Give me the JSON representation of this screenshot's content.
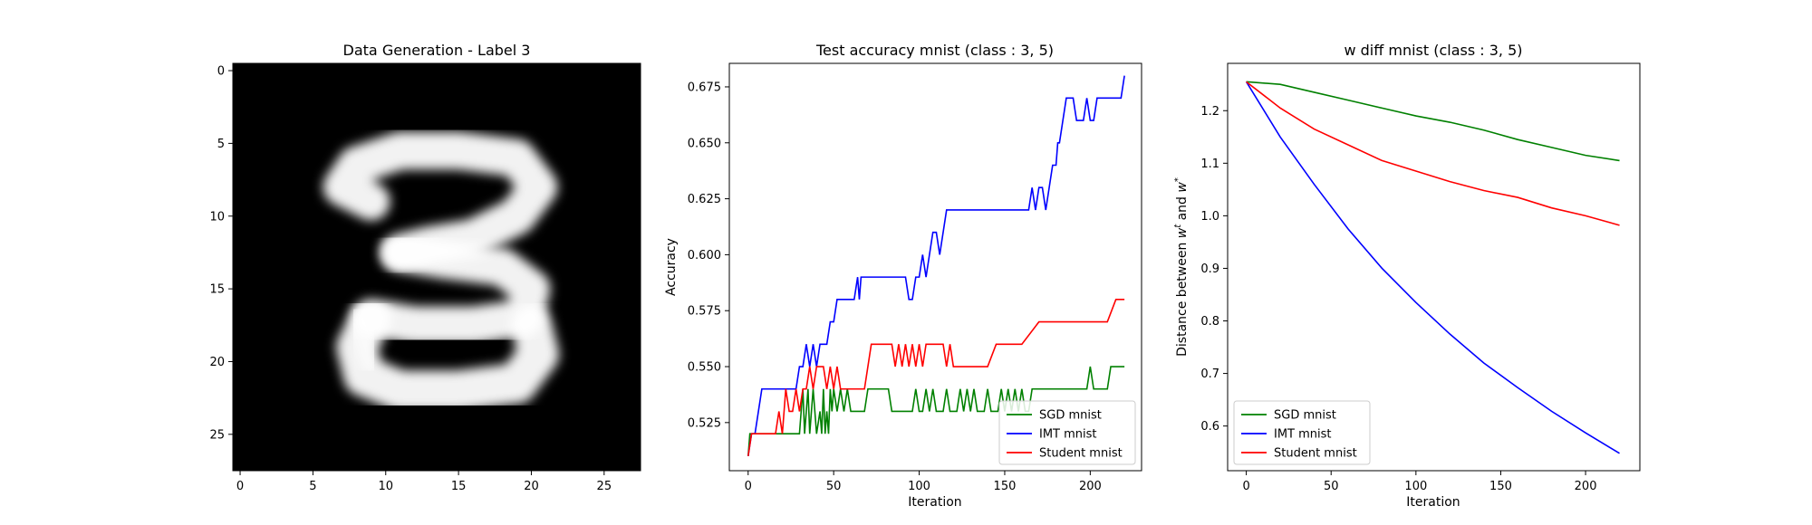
{
  "chart_data": [
    {
      "type": "heatmap",
      "title": "Data Generation - Label 3",
      "xlabel": "",
      "ylabel": "",
      "colormap": "gray",
      "shape": [
        28,
        28
      ],
      "xticks": [
        0,
        5,
        10,
        15,
        20,
        25
      ],
      "yticks": [
        0,
        5,
        10,
        15,
        20,
        25
      ],
      "grid": false
    },
    {
      "type": "line",
      "title": "Test accuracy mnist (class : 3, 5)",
      "xlabel": "Iteration",
      "ylabel": "Accuracy",
      "xlim": [
        -11,
        230
      ],
      "ylim": [
        0.5035,
        0.6855
      ],
      "xticks": [
        0,
        50,
        100,
        150,
        200
      ],
      "yticks": [
        0.525,
        0.55,
        0.575,
        0.6,
        0.625,
        0.65,
        0.675
      ],
      "grid": false,
      "legend": "lower-right",
      "series": [
        {
          "name": "SGD mnist",
          "color": "#008000",
          "x": [
            0,
            1,
            2,
            3,
            4,
            5,
            6,
            8,
            10,
            12,
            14,
            16,
            18,
            20,
            22,
            24,
            26,
            28,
            30,
            31,
            32,
            33,
            34,
            35,
            36,
            37,
            38,
            40,
            42,
            43,
            44,
            45,
            46,
            47,
            48,
            49,
            50,
            52,
            54,
            56,
            58,
            60,
            62,
            64,
            66,
            68,
            70,
            72,
            74,
            76,
            78,
            80,
            82,
            84,
            86,
            88,
            90,
            92,
            94,
            96,
            98,
            100,
            102,
            104,
            106,
            108,
            110,
            112,
            114,
            116,
            118,
            120,
            122,
            124,
            126,
            128,
            130,
            132,
            134,
            136,
            138,
            140,
            142,
            144,
            146,
            148,
            150,
            152,
            154,
            156,
            158,
            160,
            162,
            164,
            166,
            168,
            170,
            172,
            174,
            176,
            178,
            180,
            182,
            184,
            186,
            188,
            190,
            192,
            194,
            196,
            198,
            200,
            202,
            204,
            206,
            208,
            210,
            212,
            214,
            216,
            218,
            220
          ],
          "y": [
            0.51,
            0.52,
            0.52,
            0.52,
            0.52,
            0.52,
            0.52,
            0.52,
            0.52,
            0.52,
            0.52,
            0.52,
            0.52,
            0.52,
            0.52,
            0.52,
            0.52,
            0.52,
            0.52,
            0.53,
            0.54,
            0.52,
            0.53,
            0.54,
            0.52,
            0.53,
            0.54,
            0.52,
            0.53,
            0.52,
            0.54,
            0.52,
            0.53,
            0.52,
            0.54,
            0.53,
            0.54,
            0.53,
            0.54,
            0.53,
            0.54,
            0.53,
            0.53,
            0.53,
            0.53,
            0.53,
            0.54,
            0.54,
            0.54,
            0.54,
            0.54,
            0.54,
            0.54,
            0.53,
            0.53,
            0.53,
            0.53,
            0.53,
            0.53,
            0.53,
            0.54,
            0.53,
            0.53,
            0.54,
            0.53,
            0.54,
            0.53,
            0.53,
            0.53,
            0.54,
            0.53,
            0.53,
            0.53,
            0.54,
            0.53,
            0.54,
            0.53,
            0.54,
            0.53,
            0.53,
            0.53,
            0.54,
            0.53,
            0.53,
            0.53,
            0.54,
            0.53,
            0.54,
            0.53,
            0.54,
            0.53,
            0.54,
            0.53,
            0.53,
            0.54,
            0.54,
            0.54,
            0.54,
            0.54,
            0.54,
            0.54,
            0.54,
            0.54,
            0.54,
            0.54,
            0.54,
            0.54,
            0.54,
            0.54,
            0.54,
            0.54,
            0.55,
            0.54,
            0.54,
            0.54,
            0.54,
            0.54,
            0.55,
            0.55,
            0.55,
            0.55,
            0.55
          ]
        },
        {
          "name": "IMT mnist",
          "color": "#0000ff",
          "x": [
            0,
            2,
            4,
            6,
            8,
            10,
            14,
            18,
            22,
            26,
            28,
            30,
            32,
            34,
            36,
            38,
            40,
            42,
            44,
            46,
            48,
            50,
            52,
            54,
            56,
            58,
            60,
            62,
            64,
            65,
            66,
            68,
            70,
            74,
            80,
            86,
            92,
            94,
            96,
            98,
            100,
            102,
            104,
            106,
            108,
            110,
            112,
            114,
            116,
            120,
            130,
            140,
            150,
            160,
            164,
            166,
            168,
            170,
            172,
            174,
            176,
            178,
            180,
            181,
            182,
            184,
            186,
            188,
            190,
            192,
            194,
            196,
            198,
            200,
            202,
            204,
            206,
            210,
            214,
            218,
            220
          ],
          "y": [
            0.51,
            0.52,
            0.52,
            0.53,
            0.54,
            0.54,
            0.54,
            0.54,
            0.54,
            0.54,
            0.54,
            0.55,
            0.55,
            0.56,
            0.55,
            0.56,
            0.55,
            0.56,
            0.56,
            0.56,
            0.57,
            0.57,
            0.58,
            0.58,
            0.58,
            0.58,
            0.58,
            0.58,
            0.59,
            0.58,
            0.59,
            0.59,
            0.59,
            0.59,
            0.59,
            0.59,
            0.59,
            0.58,
            0.58,
            0.59,
            0.59,
            0.6,
            0.59,
            0.6,
            0.61,
            0.61,
            0.6,
            0.61,
            0.62,
            0.62,
            0.62,
            0.62,
            0.62,
            0.62,
            0.62,
            0.63,
            0.62,
            0.63,
            0.63,
            0.62,
            0.63,
            0.64,
            0.64,
            0.65,
            0.65,
            0.66,
            0.67,
            0.67,
            0.67,
            0.66,
            0.66,
            0.66,
            0.67,
            0.66,
            0.66,
            0.67,
            0.67,
            0.67,
            0.67,
            0.67,
            0.68
          ]
        },
        {
          "name": "Student mnist",
          "color": "#ff0000",
          "x": [
            0,
            2,
            4,
            6,
            8,
            10,
            12,
            14,
            16,
            18,
            20,
            22,
            24,
            26,
            28,
            30,
            32,
            34,
            36,
            38,
            40,
            42,
            44,
            46,
            48,
            50,
            52,
            54,
            56,
            58,
            60,
            62,
            64,
            66,
            68,
            70,
            72,
            74,
            76,
            78,
            80,
            82,
            84,
            86,
            88,
            90,
            92,
            94,
            96,
            98,
            100,
            102,
            104,
            106,
            108,
            110,
            112,
            114,
            116,
            118,
            120,
            130,
            140,
            145,
            150,
            160,
            170,
            172,
            180,
            190,
            200,
            210,
            215,
            220
          ],
          "y": [
            0.51,
            0.52,
            0.52,
            0.52,
            0.52,
            0.52,
            0.52,
            0.52,
            0.52,
            0.53,
            0.52,
            0.54,
            0.53,
            0.53,
            0.54,
            0.53,
            0.54,
            0.54,
            0.55,
            0.54,
            0.55,
            0.55,
            0.55,
            0.54,
            0.55,
            0.54,
            0.55,
            0.54,
            0.54,
            0.54,
            0.54,
            0.54,
            0.54,
            0.54,
            0.54,
            0.55,
            0.56,
            0.56,
            0.56,
            0.56,
            0.56,
            0.56,
            0.56,
            0.55,
            0.56,
            0.55,
            0.56,
            0.55,
            0.56,
            0.55,
            0.56,
            0.55,
            0.56,
            0.56,
            0.56,
            0.56,
            0.56,
            0.56,
            0.55,
            0.56,
            0.55,
            0.55,
            0.55,
            0.56,
            0.56,
            0.56,
            0.57,
            0.57,
            0.57,
            0.57,
            0.57,
            0.57,
            0.58,
            0.58
          ]
        }
      ]
    },
    {
      "type": "line",
      "title": "w diff mnist (class : 3, 5)",
      "xlabel": "Iteration",
      "ylabel": "Distance between w^t and w^*",
      "xlim": [
        -11,
        232
      ],
      "ylim": [
        0.515,
        1.29
      ],
      "xticks": [
        0,
        50,
        100,
        150,
        200
      ],
      "yticks": [
        0.6,
        0.7,
        0.8,
        0.9,
        1.0,
        1.1,
        1.2
      ],
      "grid": false,
      "legend": "lower-left",
      "series": [
        {
          "name": "SGD mnist",
          "color": "#008000",
          "x": [
            0,
            20,
            40,
            60,
            80,
            100,
            120,
            140,
            160,
            180,
            200,
            220
          ],
          "y": [
            1.255,
            1.25,
            1.235,
            1.22,
            1.205,
            1.19,
            1.178,
            1.163,
            1.145,
            1.13,
            1.115,
            1.105
          ]
        },
        {
          "name": "IMT mnist",
          "color": "#0000ff",
          "x": [
            0,
            20,
            40,
            60,
            80,
            100,
            120,
            140,
            160,
            180,
            200,
            220
          ],
          "y": [
            1.255,
            1.15,
            1.06,
            0.975,
            0.9,
            0.835,
            0.775,
            0.72,
            0.673,
            0.628,
            0.587,
            0.548
          ]
        },
        {
          "name": "Student mnist",
          "color": "#ff0000",
          "x": [
            0,
            20,
            40,
            60,
            80,
            100,
            120,
            140,
            160,
            180,
            200,
            220
          ],
          "y": [
            1.255,
            1.205,
            1.165,
            1.135,
            1.105,
            1.085,
            1.065,
            1.048,
            1.035,
            1.015,
            1.0,
            0.982
          ]
        }
      ]
    }
  ]
}
